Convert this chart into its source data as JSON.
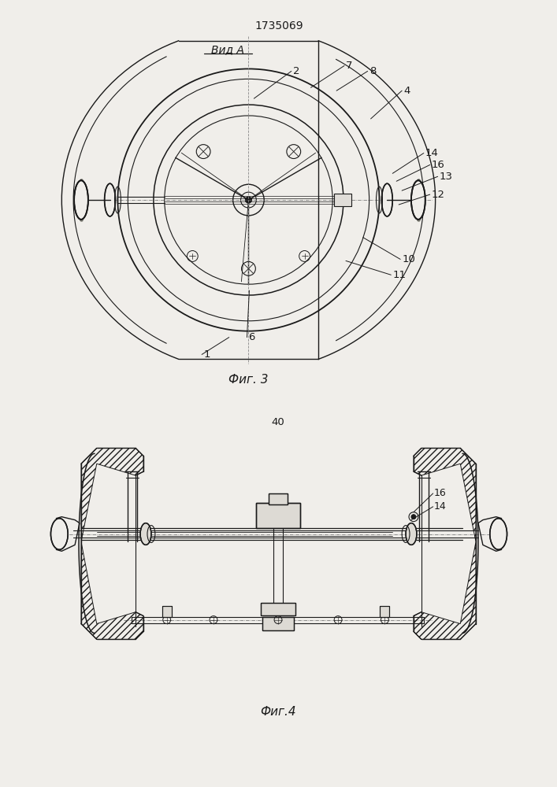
{
  "bg_color": "#f0eeea",
  "line_color": "#1a1a1a",
  "title": "1735069",
  "fig3_label": "Фиг. 3",
  "fig4_label": "Фиг.4",
  "view_label": "Вид A",
  "page_number": "40",
  "annotations_3": [
    [
      370,
      87,
      322,
      122,
      "2"
    ],
    [
      438,
      80,
      395,
      108,
      "7"
    ],
    [
      468,
      87,
      428,
      112,
      "8"
    ],
    [
      512,
      112,
      472,
      148,
      "4"
    ],
    [
      540,
      192,
      500,
      218,
      "14"
    ],
    [
      548,
      207,
      505,
      228,
      "16"
    ],
    [
      558,
      222,
      512,
      240,
      "13"
    ],
    [
      548,
      245,
      508,
      258,
      "12"
    ],
    [
      510,
      328,
      462,
      300,
      "10"
    ],
    [
      498,
      348,
      440,
      330,
      "11"
    ],
    [
      313,
      428,
      316,
      368,
      "6"
    ],
    [
      255,
      450,
      290,
      428,
      "1"
    ]
  ]
}
